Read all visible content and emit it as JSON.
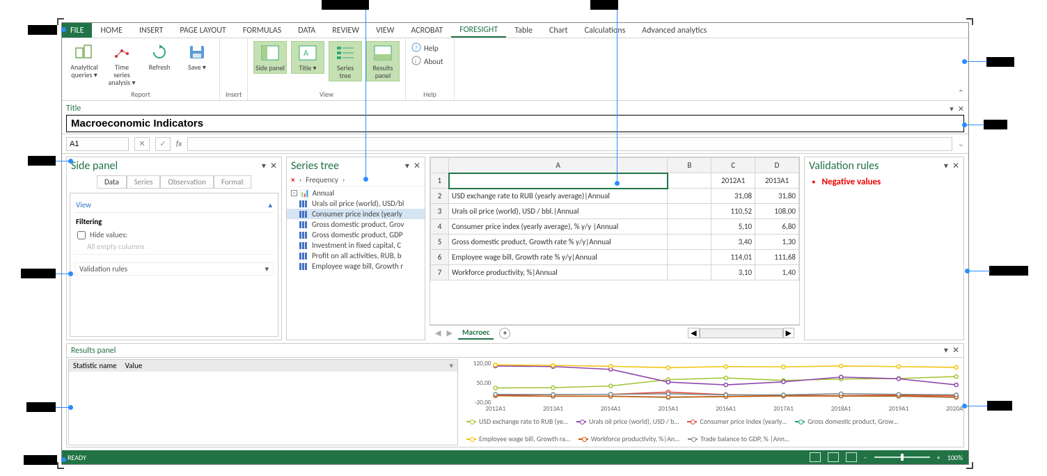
{
  "menu": {
    "file": "FILE",
    "items": [
      "HOME",
      "INSERT",
      "PAGE LAYOUT",
      "FORMULAS",
      "DATA",
      "REVIEW",
      "VIEW",
      "ACROBAT",
      "FORESIGHT",
      "Table",
      "Chart",
      "Calculations",
      "Advanced analytics"
    ],
    "active_index": 8
  },
  "ribbon": {
    "groups": [
      {
        "label": "Report",
        "buttons": [
          {
            "label": "Analytical queries ▾",
            "icon": "aq"
          },
          {
            "label": "Time series analysis ▾",
            "icon": "ts"
          },
          {
            "label": "Refresh",
            "icon": "refresh"
          },
          {
            "label": "Save ▾",
            "icon": "save"
          }
        ]
      },
      {
        "label": "Insert",
        "buttons": []
      },
      {
        "label": "View",
        "highlighted": true,
        "buttons": [
          {
            "label": "Side panel",
            "icon": "sidepanel",
            "hl": true
          },
          {
            "label": "Title ▾",
            "icon": "title",
            "hl": true
          },
          {
            "label": "Series tree",
            "icon": "seriestree",
            "hl": true
          },
          {
            "label": "Results panel",
            "icon": "resultspanel",
            "hl": true
          }
        ]
      },
      {
        "label": "Help",
        "buttons": [
          {
            "label": "Help",
            "icon": "help",
            "small": true
          },
          {
            "label": "About",
            "icon": "about",
            "small": true
          }
        ]
      }
    ]
  },
  "title_panel": {
    "header": "Title",
    "value": "Macroeconomic Indicators"
  },
  "namebar": {
    "cell": "A1",
    "fx": "fx",
    "value": ""
  },
  "side_panel": {
    "header": "Side panel",
    "tabs": [
      "Data",
      "Series",
      "Observation",
      "Format"
    ],
    "active_tab": 0,
    "view_label": "View",
    "filtering_label": "Filtering",
    "hide_values_label": "Hide values:",
    "empty_cols_label": "All empty columns",
    "validation_rules_label": "Validation rules"
  },
  "series_tree": {
    "header": "Series tree",
    "crumb_close": "×",
    "crumb_text": "Frequency",
    "root": "Annual",
    "items": [
      "Urals oil price (world), USD/bl",
      "Consumer price index (yearly",
      "Gross domestic product, Grov",
      "Gross domestic product, GDP",
      "Investment in fixed capital, C",
      "Profit on all activities, RUB, b",
      "Employee wage bill, Growth r"
    ],
    "selected_index": 1
  },
  "sheet": {
    "current_tab": "Macroec",
    "columns": [
      "A",
      "B",
      "C",
      "D"
    ],
    "year_headers": [
      "",
      "",
      "2012A1",
      "2013A1"
    ],
    "rows": [
      {
        "r": 1,
        "a": "",
        "b": "",
        "c": "",
        "d": ""
      },
      {
        "r": 2,
        "a": "USD exchange rate to RUB (yearly average)|Annual",
        "c": "31,08",
        "d": "31,80"
      },
      {
        "r": 3,
        "a": "Urals oil price (world), USD / bbl.|Annual",
        "c": "110,52",
        "d": "108,00"
      },
      {
        "r": 4,
        "a": "Consumer price index (yearly average), % y/y |Annual",
        "c": "5,10",
        "d": "6,80"
      },
      {
        "r": 5,
        "a": "Gross domestic product, Growth rate % y/y|Annual",
        "c": "3,40",
        "d": "1,30"
      },
      {
        "r": 6,
        "a": "Employee wage bill, Growth rate % y/y|Annual",
        "c": "114,01",
        "d": "111,68"
      },
      {
        "r": 7,
        "a": "Workforce productivity, %|Annual",
        "c": "3,10",
        "d": "1,40"
      }
    ]
  },
  "validation": {
    "header": "Validation rules",
    "items": [
      "Negative values"
    ]
  },
  "results": {
    "header": "Results panel",
    "stats_cols": [
      "Statistic name",
      "Value"
    ],
    "chart": {
      "years": [
        "2012A1",
        "2013A1",
        "2014A1",
        "2015A1",
        "2016A1",
        "2017A1",
        "2018A1",
        "2019A1",
        "2020A1"
      ],
      "yticks": [
        "-20,00",
        "50,00",
        "120,00"
      ],
      "ylim": [
        -20,
        120
      ],
      "series": [
        {
          "name": "USD exchange rate to RUB (ye…",
          "color": "#a4c639",
          "values": [
            31,
            32,
            38,
            61,
            67,
            58,
            63,
            65,
            72
          ]
        },
        {
          "name": "Urals oil price (world), USD / b…",
          "color": "#8e44ad",
          "values": [
            110,
            108,
            98,
            52,
            42,
            53,
            70,
            64,
            42
          ]
        },
        {
          "name": "Consumer price index (yearly…",
          "color": "#e74c3c",
          "values": [
            5,
            7,
            8,
            16,
            7,
            4,
            3,
            5,
            3
          ]
        },
        {
          "name": "Gross domestic product, Grow…",
          "color": "#16a085",
          "values": [
            3,
            1,
            1,
            -3,
            0,
            2,
            2,
            1,
            -3
          ]
        },
        {
          "name": "Employee wage bill, Growth ra…",
          "color": "#f1c40f",
          "values": [
            114,
            112,
            109,
            104,
            108,
            107,
            110,
            108,
            105
          ]
        },
        {
          "name": "Workforce productivity, %|An…",
          "color": "#d35400",
          "values": [
            3,
            1,
            1,
            -2,
            0,
            2,
            2,
            2,
            -2
          ]
        },
        {
          "name": "Trade balance to GDP, % |Ann…",
          "color": "#7f8c8d",
          "values": [
            8,
            7,
            8,
            10,
            6,
            6,
            10,
            8,
            6
          ]
        }
      ]
    }
  },
  "status": {
    "text": "READY",
    "zoom": "100%"
  }
}
